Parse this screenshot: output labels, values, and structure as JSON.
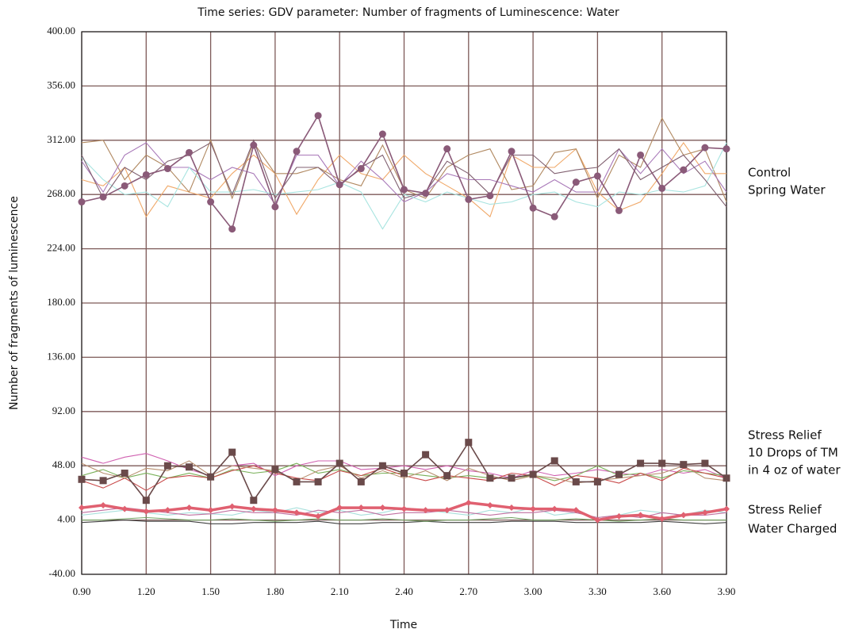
{
  "chart_data": {
    "type": "line",
    "title": "Time series: GDV parameter: Number of fragments of Luminescence: Water",
    "xlabel": "Time",
    "ylabel": "Number of fragments of luminescence",
    "x": [
      0.9,
      1.0,
      1.1,
      1.2,
      1.3,
      1.4,
      1.5,
      1.6,
      1.7,
      1.8,
      1.9,
      2.0,
      2.1,
      2.2,
      2.3,
      2.4,
      2.5,
      2.6,
      2.7,
      2.8,
      2.9,
      3.0,
      3.1,
      3.2,
      3.3,
      3.4,
      3.5,
      3.6,
      3.7,
      3.8,
      3.9
    ],
    "xlim": [
      0.9,
      3.9
    ],
    "xticks": [
      {
        "value": 0.9,
        "label": "0.90"
      },
      {
        "value": 1.2,
        "label": "1.20"
      },
      {
        "value": 1.5,
        "label": "1.50"
      },
      {
        "value": 1.8,
        "label": "1.80"
      },
      {
        "value": 2.1,
        "label": "2.10"
      },
      {
        "value": 2.4,
        "label": "2.40"
      },
      {
        "value": 2.7,
        "label": "2.70"
      },
      {
        "value": 3.0,
        "label": "3.00"
      },
      {
        "value": 3.3,
        "label": "3.30"
      },
      {
        "value": 3.6,
        "label": "3.60"
      },
      {
        "value": 3.9,
        "label": "3.90"
      }
    ],
    "ylim": [
      -40,
      400
    ],
    "yticks": [
      {
        "value": -40,
        "label": "-40.00"
      },
      {
        "value": 4,
        "label": "4.00"
      },
      {
        "value": 48,
        "label": "48.00"
      },
      {
        "value": 92,
        "label": "92.00"
      },
      {
        "value": 136,
        "label": "136.00"
      },
      {
        "value": 180,
        "label": "180.00"
      },
      {
        "value": 224,
        "label": "224.00"
      },
      {
        "value": 268,
        "label": "268.00"
      },
      {
        "value": 312,
        "label": "312.00"
      },
      {
        "value": 356,
        "label": "356.00"
      },
      {
        "value": 400,
        "label": "400.00"
      }
    ],
    "grid": true,
    "annotations": [
      "Control",
      "Spring Water",
      "Stress Relief",
      "10 Drops of TM",
      "in 4 oz of water",
      "Stress Relief",
      "Water Charged"
    ],
    "series": [
      {
        "color": "#f0a868",
        "values": [
          280,
          275,
          290,
          250,
          275,
          270,
          265,
          285,
          300,
          285,
          252,
          280,
          300,
          285,
          280,
          300,
          285,
          275,
          265,
          250,
          300,
          290,
          290,
          305,
          270,
          255,
          262,
          285,
          310,
          285,
          285
        ]
      },
      {
        "color": "#b08860",
        "values": [
          310,
          312,
          280,
          300,
          290,
          270,
          312,
          265,
          310,
          285,
          285,
          290,
          280,
          275,
          308,
          272,
          265,
          290,
          300,
          305,
          272,
          275,
          302,
          305,
          265,
          300,
          290,
          330,
          300,
          305,
          262
        ]
      },
      {
        "color": "#a878b8",
        "values": [
          295,
          270,
          300,
          310,
          290,
          290,
          280,
          290,
          285,
          260,
          300,
          300,
          275,
          295,
          280,
          262,
          270,
          285,
          280,
          280,
          275,
          270,
          280,
          270,
          270,
          305,
          285,
          305,
          285,
          295,
          270
        ]
      },
      {
        "color": "#a8e4e0",
        "values": [
          298,
          280,
          268,
          270,
          258,
          290,
          270,
          270,
          272,
          268,
          270,
          272,
          278,
          270,
          240,
          268,
          262,
          270,
          265,
          260,
          262,
          268,
          270,
          262,
          258,
          270,
          268,
          272,
          270,
          275,
          310
        ]
      },
      {
        "color": "#806070",
        "values": [
          300,
          265,
          290,
          280,
          295,
          300,
          310,
          268,
          312,
          265,
          290,
          290,
          275,
          290,
          300,
          265,
          270,
          295,
          285,
          268,
          300,
          300,
          285,
          288,
          290,
          305,
          280,
          290,
          300,
          280,
          258
        ]
      },
      {
        "color": "#8a5a78",
        "marker": "circle",
        "values": [
          262,
          266,
          275,
          284,
          289,
          302,
          262,
          240,
          308,
          258,
          303,
          332,
          276,
          289,
          317,
          272,
          269,
          305,
          264,
          267,
          303,
          257,
          250,
          278,
          283,
          255,
          300,
          273,
          288,
          306,
          305
        ]
      },
      {
        "color": "#d060b0",
        "values": [
          55,
          50,
          55,
          58,
          52,
          45,
          40,
          48,
          50,
          40,
          48,
          52,
          52,
          45,
          46,
          48,
          45,
          48,
          44,
          42,
          38,
          44,
          40,
          42,
          45,
          42,
          40,
          45,
          42,
          45,
          38
        ]
      },
      {
        "color": "#78b058",
        "values": [
          40,
          45,
          38,
          42,
          38,
          42,
          38,
          45,
          42,
          44,
          50,
          42,
          45,
          40,
          42,
          42,
          40,
          38,
          40,
          38,
          38,
          40,
          36,
          40,
          48,
          40,
          42,
          38,
          44,
          42,
          40
        ]
      },
      {
        "color": "#c84848",
        "values": [
          36,
          30,
          38,
          28,
          38,
          40,
          38,
          44,
          48,
          42,
          38,
          36,
          44,
          40,
          46,
          40,
          36,
          40,
          38,
          36,
          42,
          40,
          32,
          40,
          38,
          34,
          42,
          36,
          46,
          42,
          38
        ]
      },
      {
        "color": "#b89070",
        "values": [
          50,
          42,
          38,
          46,
          44,
          52,
          40,
          48,
          46,
          44,
          36,
          44,
          48,
          38,
          44,
          38,
          44,
          36,
          46,
          40,
          36,
          40,
          38,
          34,
          36,
          38,
          40,
          42,
          48,
          38,
          36
        ]
      },
      {
        "color": "#6a4a4a",
        "marker": "square",
        "values": [
          37,
          36,
          42,
          20,
          48,
          47,
          39,
          59,
          20,
          45,
          35,
          35,
          50,
          35,
          48,
          42,
          57,
          40,
          67,
          38,
          38,
          41,
          52,
          35,
          35,
          41,
          50,
          50,
          49,
          50,
          38
        ]
      },
      {
        "color": "#404040",
        "values": [
          2,
          3,
          4,
          3,
          3,
          3,
          1,
          1,
          2,
          2,
          2,
          3,
          1,
          1,
          2,
          2,
          3,
          2,
          2,
          2,
          3,
          3,
          3,
          2,
          2,
          2,
          2,
          3,
          2,
          1,
          2
        ]
      },
      {
        "color": "#70a060",
        "values": [
          4,
          4,
          5,
          6,
          5,
          4,
          4,
          5,
          4,
          3,
          4,
          5,
          4,
          4,
          5,
          4,
          3,
          4,
          4,
          5,
          6,
          4,
          4,
          5,
          4,
          3,
          4,
          5,
          4,
          4,
          4
        ]
      },
      {
        "color": "#a8e0dc",
        "values": [
          8,
          10,
          12,
          10,
          8,
          10,
          9,
          8,
          12,
          10,
          14,
          10,
          12,
          8,
          10,
          14,
          12,
          10,
          8,
          12,
          10,
          14,
          8,
          10,
          6,
          8,
          12,
          10,
          8,
          12,
          10
        ]
      },
      {
        "color": "#c070a0",
        "values": [
          10,
          12,
          14,
          12,
          10,
          8,
          9,
          12,
          10,
          10,
          8,
          12,
          10,
          12,
          8,
          10,
          10,
          12,
          10,
          8,
          10,
          10,
          12,
          10,
          6,
          8,
          6,
          10,
          8,
          8,
          10
        ]
      },
      {
        "color": "#e06070",
        "marker": "diamond",
        "thick": true,
        "values": [
          14,
          16,
          13,
          11,
          12,
          14,
          12,
          15,
          13,
          12,
          10,
          7,
          14,
          14,
          14,
          13,
          12,
          12,
          18,
          16,
          14,
          13,
          13,
          12,
          4,
          7,
          8,
          5,
          8,
          10,
          13
        ]
      }
    ]
  }
}
